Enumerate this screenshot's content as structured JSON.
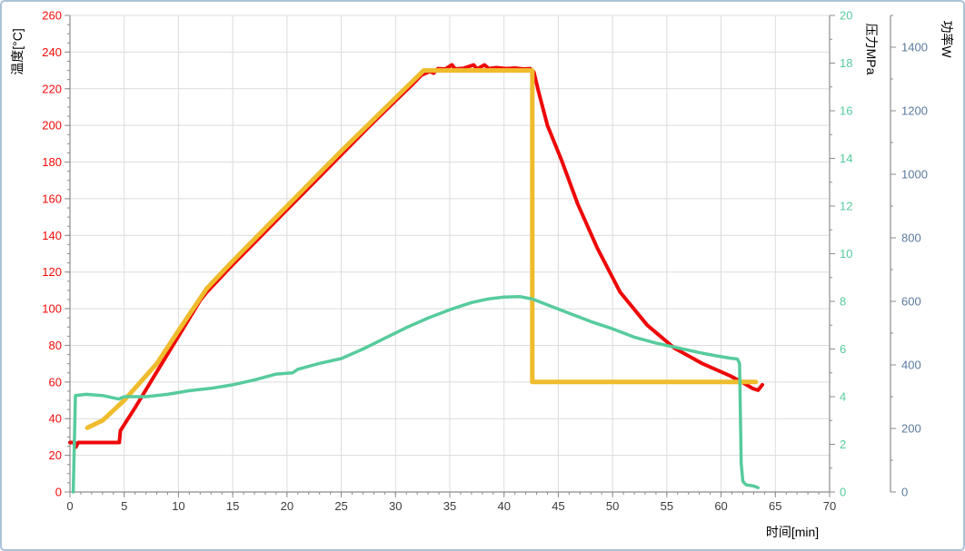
{
  "chart_data": {
    "type": "line",
    "title": "",
    "legend": "none",
    "grid": {
      "visible": true,
      "color": "#dcdcdc"
    },
    "frame_border_color": "#aac2d8",
    "axis_line_color": "#8c8c8c",
    "x_axis": {
      "label": "时间[min]",
      "min": 0,
      "max": 70,
      "major_ticks": [
        0,
        5,
        10,
        15,
        20,
        25,
        30,
        35,
        40,
        45,
        50,
        55,
        60,
        65,
        70
      ],
      "minor_step": 1,
      "text_color": "#3c3c3c"
    },
    "y_axes": [
      {
        "id": "temperature",
        "label": "温度[°C]",
        "min": 0,
        "max": 260,
        "major_ticks": [
          0,
          20,
          40,
          60,
          80,
          100,
          120,
          140,
          160,
          180,
          200,
          220,
          240,
          260
        ],
        "minor_step": 5,
        "side": "left",
        "text_color": "#f40a0a"
      },
      {
        "id": "pressure",
        "label": "压力MPa",
        "min": 0,
        "max": 20,
        "major_ticks": [
          0,
          2,
          4,
          6,
          8,
          10,
          12,
          14,
          16,
          18,
          20
        ],
        "minor_step": 1,
        "side": "right",
        "text_color": "#57cb9c"
      },
      {
        "id": "power",
        "label": "功率W",
        "min": 0,
        "max": 1500,
        "major_ticks": [
          0,
          200,
          400,
          600,
          800,
          1000,
          1200,
          1400
        ],
        "minor_step": 100,
        "side": "right-outer",
        "text_color": "#5a7a9e"
      }
    ],
    "series": [
      {
        "name": "temperature-measured",
        "axis": "temperature",
        "color": "#ee0808",
        "width": 4,
        "points": [
          [
            0,
            27
          ],
          [
            0.45,
            27
          ],
          [
            0.55,
            24.5
          ],
          [
            0.75,
            27
          ],
          [
            4.55,
            27
          ],
          [
            4.65,
            33.5
          ],
          [
            6,
            46
          ],
          [
            8,
            65.5
          ],
          [
            10,
            85
          ],
          [
            12,
            104.5
          ],
          [
            12.6,
            109
          ],
          [
            15,
            124
          ],
          [
            17.5,
            139
          ],
          [
            20,
            154
          ],
          [
            22.5,
            169
          ],
          [
            25,
            184
          ],
          [
            27.5,
            199
          ],
          [
            30,
            213.5
          ],
          [
            31.5,
            222
          ],
          [
            32.4,
            227.5
          ],
          [
            33.2,
            229.5
          ],
          [
            33.5,
            228.5
          ],
          [
            33.9,
            231
          ],
          [
            34.6,
            230.8
          ],
          [
            35.2,
            233
          ],
          [
            35.5,
            230.8
          ],
          [
            36.3,
            231.2
          ],
          [
            37.2,
            233
          ],
          [
            37.5,
            230.8
          ],
          [
            38.2,
            233
          ],
          [
            38.6,
            231
          ],
          [
            39.3,
            231.5
          ],
          [
            40.2,
            231
          ],
          [
            41,
            231.3
          ],
          [
            41.8,
            230.8
          ],
          [
            42.4,
            231
          ],
          [
            42.75,
            229
          ],
          [
            43.2,
            218
          ],
          [
            44,
            200
          ],
          [
            45.3,
            181
          ],
          [
            46.8,
            157
          ],
          [
            48.6,
            133
          ],
          [
            50.7,
            109
          ],
          [
            53.2,
            91
          ],
          [
            55.7,
            78.5
          ],
          [
            58.3,
            70
          ],
          [
            60.8,
            63.5
          ],
          [
            61.9,
            60
          ],
          [
            62.9,
            56.5
          ],
          [
            63.4,
            55.5
          ],
          [
            63.8,
            58.5
          ]
        ]
      },
      {
        "name": "temperature-setpoint",
        "axis": "temperature",
        "color": "#efbc2d",
        "width": 5,
        "points": [
          [
            1.6,
            35
          ],
          [
            3,
            39
          ],
          [
            5,
            50
          ],
          [
            8,
            70
          ],
          [
            10,
            88
          ],
          [
            12.6,
            111
          ],
          [
            15,
            126
          ],
          [
            20,
            156
          ],
          [
            25,
            186
          ],
          [
            30,
            215
          ],
          [
            32.6,
            230
          ],
          [
            42.6,
            230
          ],
          [
            42.6,
            60
          ],
          [
            63.2,
            60
          ]
        ]
      },
      {
        "name": "pressure",
        "axis": "pressure",
        "color": "#57cb9c",
        "width": 3.5,
        "points": [
          [
            0.3,
            0
          ],
          [
            0.4,
            2.0
          ],
          [
            0.5,
            4.05
          ],
          [
            1.5,
            4.1
          ],
          [
            3,
            4.05
          ],
          [
            4.5,
            3.9
          ],
          [
            5,
            4.0
          ],
          [
            7,
            4.0
          ],
          [
            9,
            4.1
          ],
          [
            11,
            4.25
          ],
          [
            13,
            4.35
          ],
          [
            15,
            4.5
          ],
          [
            17,
            4.7
          ],
          [
            19,
            4.95
          ],
          [
            20.5,
            5.0
          ],
          [
            21,
            5.15
          ],
          [
            23,
            5.4
          ],
          [
            25,
            5.6
          ],
          [
            27,
            6.0
          ],
          [
            29,
            6.45
          ],
          [
            31,
            6.9
          ],
          [
            33,
            7.3
          ],
          [
            35,
            7.65
          ],
          [
            37,
            7.95
          ],
          [
            38.5,
            8.1
          ],
          [
            40,
            8.18
          ],
          [
            41.5,
            8.2
          ],
          [
            42.6,
            8.1
          ],
          [
            44,
            7.85
          ],
          [
            46,
            7.5
          ],
          [
            48,
            7.15
          ],
          [
            50,
            6.85
          ],
          [
            52,
            6.5
          ],
          [
            54,
            6.25
          ],
          [
            56,
            6.05
          ],
          [
            58,
            5.85
          ],
          [
            59.5,
            5.72
          ],
          [
            60.8,
            5.62
          ],
          [
            61.5,
            5.58
          ],
          [
            61.7,
            5.4
          ],
          [
            61.85,
            1.2
          ],
          [
            62,
            0.45
          ],
          [
            62.3,
            0.3
          ],
          [
            63,
            0.25
          ],
          [
            63.4,
            0.18
          ]
        ]
      }
    ]
  }
}
